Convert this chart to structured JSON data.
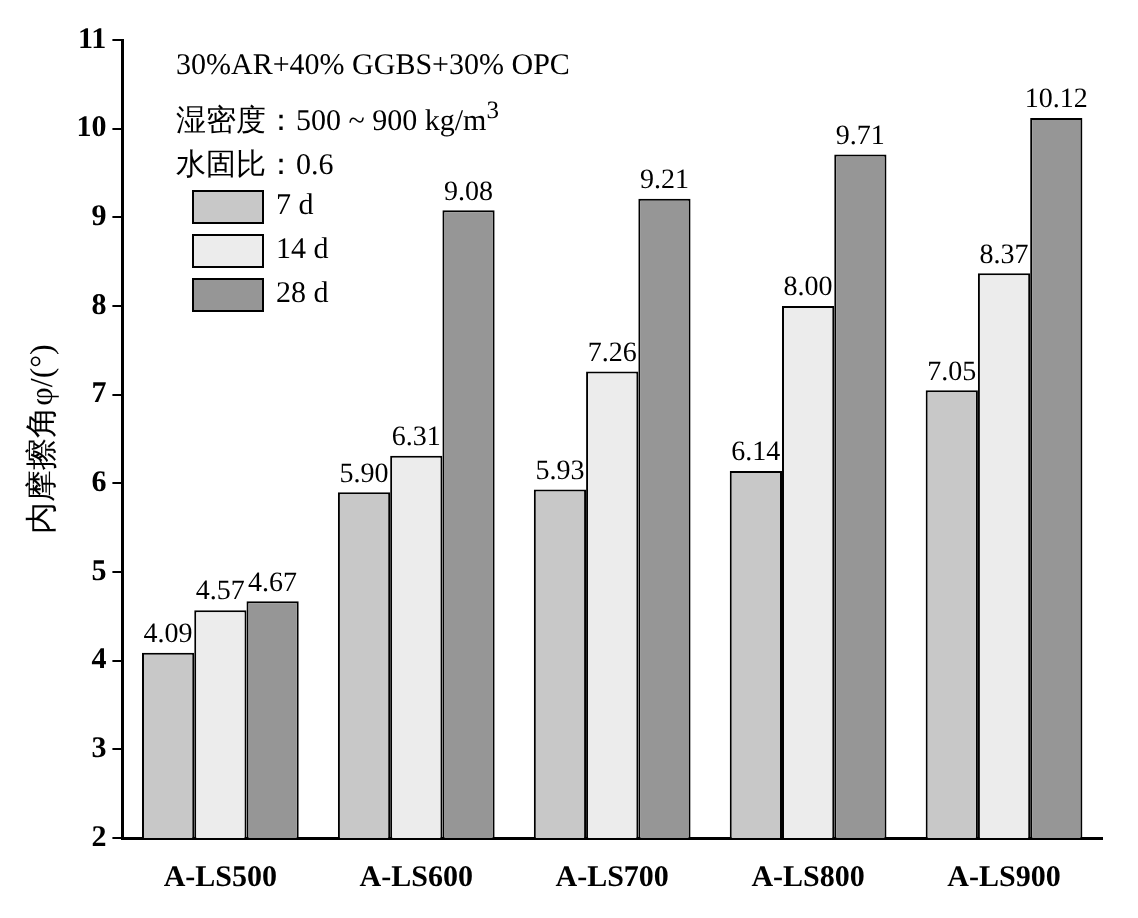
{
  "chart_data": {
    "type": "bar",
    "ylabel": "内摩擦角φ/(°)",
    "annotations": [
      "30%AR+40% GGBS+30% OPC",
      "湿密度：500 ~ 900 kg/m$^{3}$",
      "水固比：0.6"
    ],
    "categories": [
      "A-LS500",
      "A-LS600",
      "A-LS700",
      "A-LS800",
      "A-LS900"
    ],
    "series": [
      {
        "name": "7 d",
        "color": "#c8c8c8",
        "values": [
          4.09,
          5.9,
          5.93,
          6.14,
          7.05
        ],
        "value_labels": [
          "4.09",
          "5.90",
          "5.93",
          "6.14",
          "7.05"
        ]
      },
      {
        "name": "14 d",
        "color": "#ececec",
        "values": [
          4.57,
          6.31,
          7.26,
          8.0,
          8.37
        ],
        "value_labels": [
          "4.57",
          "6.31",
          "7.26",
          "8.00",
          "8.37"
        ]
      },
      {
        "name": "28 d",
        "color": "#969696",
        "values": [
          4.67,
          9.08,
          9.21,
          9.71,
          10.12
        ],
        "value_labels": [
          "4.67",
          "9.08",
          "9.21",
          "9.71",
          "10.12"
        ]
      }
    ],
    "ylim": [
      2,
      11
    ],
    "yticks": [
      2,
      3,
      4,
      5,
      6,
      7,
      8,
      9,
      10,
      11
    ],
    "grid": false,
    "legend": "top left"
  }
}
